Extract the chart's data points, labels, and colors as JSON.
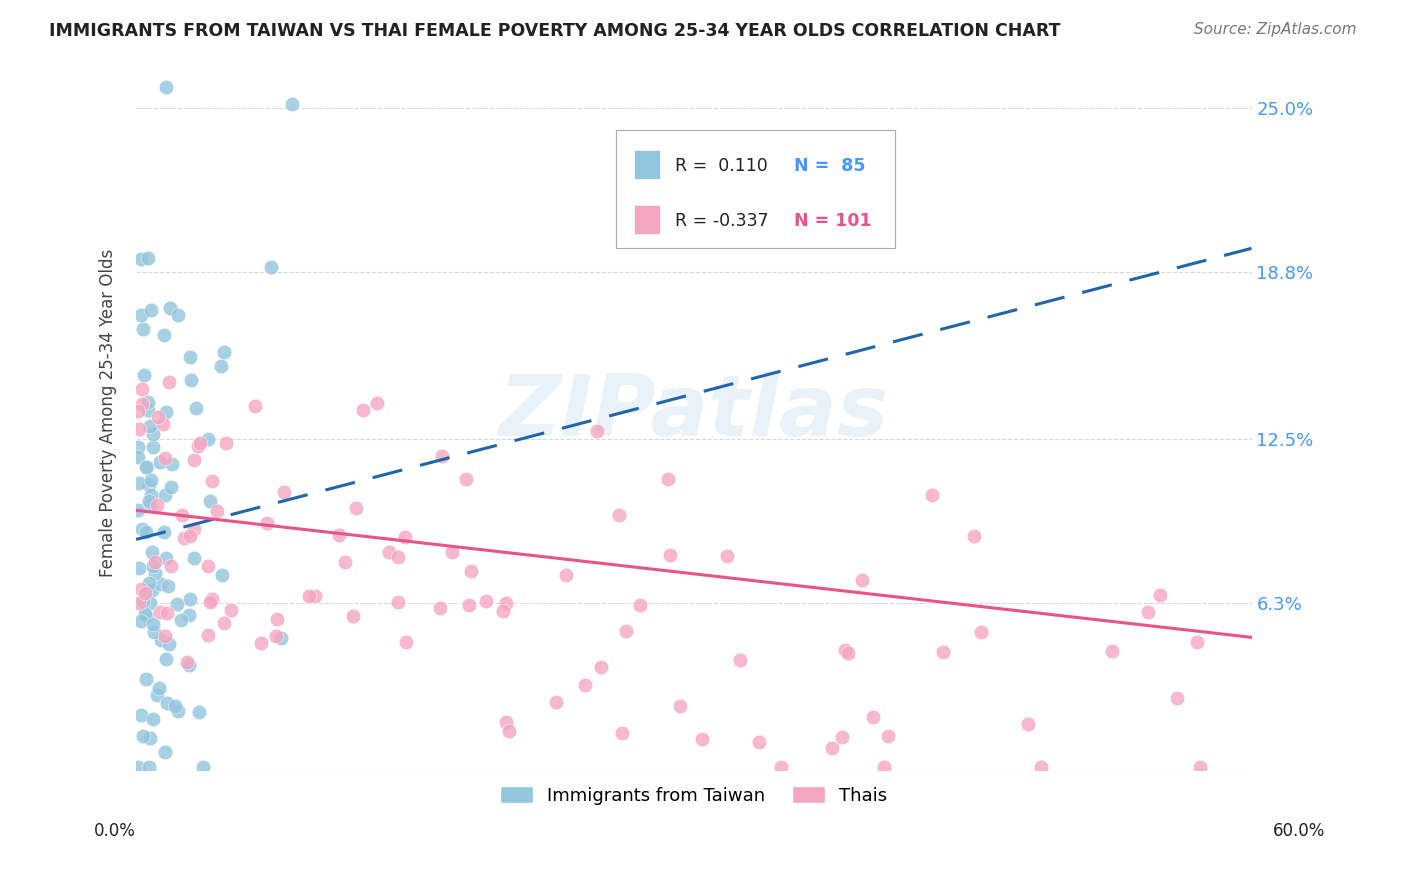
{
  "title": "IMMIGRANTS FROM TAIWAN VS THAI FEMALE POVERTY AMONG 25-34 YEAR OLDS CORRELATION CHART",
  "source": "Source: ZipAtlas.com",
  "ylabel": "Female Poverty Among 25-34 Year Olds",
  "legend_label1": "Immigrants from Taiwan",
  "legend_label2": "Thais",
  "taiwan_color": "#92c5de",
  "thai_color": "#f4a6c0",
  "taiwan_line_color": "#2166ac",
  "thai_line_color": "#e8548a",
  "background_color": "#ffffff",
  "grid_color": "#d8d8d8",
  "xlim": [
    0.0,
    0.6
  ],
  "ylim": [
    0.0,
    0.27
  ],
  "ytick_vals": [
    0.0,
    0.063,
    0.125,
    0.188,
    0.25
  ],
  "ytick_labels_right": [
    "",
    "6.3%",
    "12.5%",
    "18.8%",
    "25.0%"
  ],
  "xtick_vals": [
    0.0,
    0.1,
    0.2,
    0.3,
    0.4,
    0.5,
    0.6
  ],
  "taiwan_line_x": [
    0.0,
    0.6
  ],
  "taiwan_line_y": [
    0.087,
    0.197
  ],
  "thai_line_x": [
    0.0,
    0.6
  ],
  "thai_line_y": [
    0.098,
    0.05
  ],
  "watermark_text": "ZIPatlas",
  "legend_R1_text": "R =  0.110",
  "legend_N1_text": "N =  85",
  "legend_R2_text": "R = -0.337",
  "legend_N2_text": "N = 101"
}
